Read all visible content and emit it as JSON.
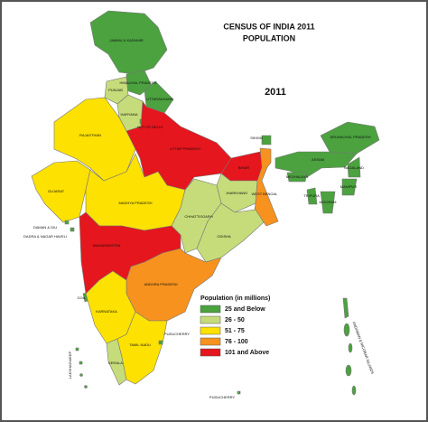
{
  "title": "CENSUS OF INDIA 2011",
  "subtitle": "POPULATION",
  "year": "2011",
  "legend": {
    "title": "Population (in millions)",
    "items": [
      {
        "label": "25 and Below",
        "color": "#4ba23f"
      },
      {
        "label": "26 - 50",
        "color": "#c6dc7a"
      },
      {
        "label": "51 - 75",
        "color": "#fde100"
      },
      {
        "label": "76 - 100",
        "color": "#f7921e"
      },
      {
        "label": "101 and Above",
        "color": "#e5161d"
      }
    ]
  },
  "states": [
    {
      "label": "JAMMU & KASHMIR",
      "category": 0
    },
    {
      "label": "HIMACHAL PRADESH",
      "category": 0
    },
    {
      "label": "PUNJAB",
      "category": 1
    },
    {
      "label": "UTTARAKHAND",
      "category": 0
    },
    {
      "label": "HARYANA",
      "category": 1
    },
    {
      "label": "NCT OF DELHI",
      "category": 0
    },
    {
      "label": "RAJASTHAN",
      "category": 2
    },
    {
      "label": "UTTAR PRADESH",
      "category": 4
    },
    {
      "label": "BIHAR",
      "category": 4
    },
    {
      "label": "SIKKIM",
      "category": 0
    },
    {
      "label": "ARUNACHAL PRADESH",
      "category": 0
    },
    {
      "label": "ASSAM",
      "category": 0
    },
    {
      "label": "NAGALAND",
      "category": 0
    },
    {
      "label": "MEGHALAYA",
      "category": 0
    },
    {
      "label": "MANIPUR",
      "category": 0
    },
    {
      "label": "TRIPURA",
      "category": 0
    },
    {
      "label": "MIZORAM",
      "category": 0
    },
    {
      "label": "GUJARAT",
      "category": 2
    },
    {
      "label": "MADHYA PRADESH",
      "category": 2
    },
    {
      "label": "JHARKHAND",
      "category": 1
    },
    {
      "label": "WEST BENGAL",
      "category": 3
    },
    {
      "label": "CHHATTISGARH",
      "category": 1
    },
    {
      "label": "ODISHA",
      "category": 1
    },
    {
      "label": "DAMAN & DIU",
      "category": 0
    },
    {
      "label": "DADRA & NAGAR HAVELI",
      "category": 0
    },
    {
      "label": "MAHARASHTRA",
      "category": 4
    },
    {
      "label": "ANDHRA PRADESH",
      "category": 3
    },
    {
      "label": "GOA",
      "category": 0
    },
    {
      "label": "KARNATAKA",
      "category": 2
    },
    {
      "label": "KERALA",
      "category": 1
    },
    {
      "label": "TAMIL NADU",
      "category": 2
    },
    {
      "label": "PUDUCHERRY",
      "category": 0
    },
    {
      "label": "LAKSHADWEEP",
      "category": 0
    },
    {
      "label": "ANDAMAN & NICOBAR ISLANDS",
      "category": 0
    },
    {
      "label": "PUDUCHERRY",
      "category": 0
    }
  ]
}
